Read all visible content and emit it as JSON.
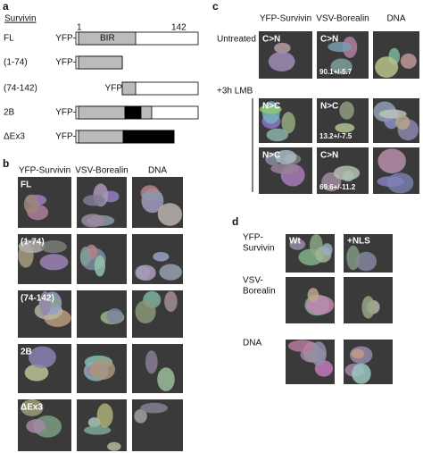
{
  "panel_a": {
    "label": "a",
    "header": "Survivin",
    "start": "1",
    "end": "142",
    "domain": "BIR",
    "rows": [
      {
        "name": "FL",
        "tag": "YFP-"
      },
      {
        "name": "(1-74)",
        "tag": "YFP-"
      },
      {
        "name": "(74-142)",
        "tag": "YFP"
      },
      {
        "name": "2B",
        "tag": "YFP-"
      },
      {
        "name": "ΔEx3",
        "tag": "YFP-"
      }
    ]
  },
  "panel_b": {
    "label": "b",
    "columns": [
      "YFP-Survivin",
      "VSV-Borealin",
      "DNA"
    ],
    "rows": [
      "FL",
      "(1-74)",
      "(74-142)",
      "2B",
      "ΔEx3"
    ]
  },
  "panel_c": {
    "label": "c",
    "columns": [
      "YFP-Survivin",
      "VSV-Borealin",
      "DNA"
    ],
    "conditions": [
      "Untreated",
      "+3h LMB"
    ],
    "rows": [
      {
        "yfp": "C>N",
        "vsv": "C>N",
        "stat": "90.1+/-5.7"
      },
      {
        "yfp": "N>C",
        "vsv": "N>C",
        "stat": "13.2+/-7.5"
      },
      {
        "yfp": "N>C",
        "vsv": "C>N",
        "stat": "69.6+/-11.2"
      }
    ]
  },
  "panel_d": {
    "label": "d",
    "columns": [
      "Wt",
      "+NLS"
    ],
    "rows": [
      [
        "YFP-",
        "Survivin"
      ],
      [
        "VSV-",
        "Borealin"
      ],
      [
        "DNA"
      ]
    ]
  }
}
